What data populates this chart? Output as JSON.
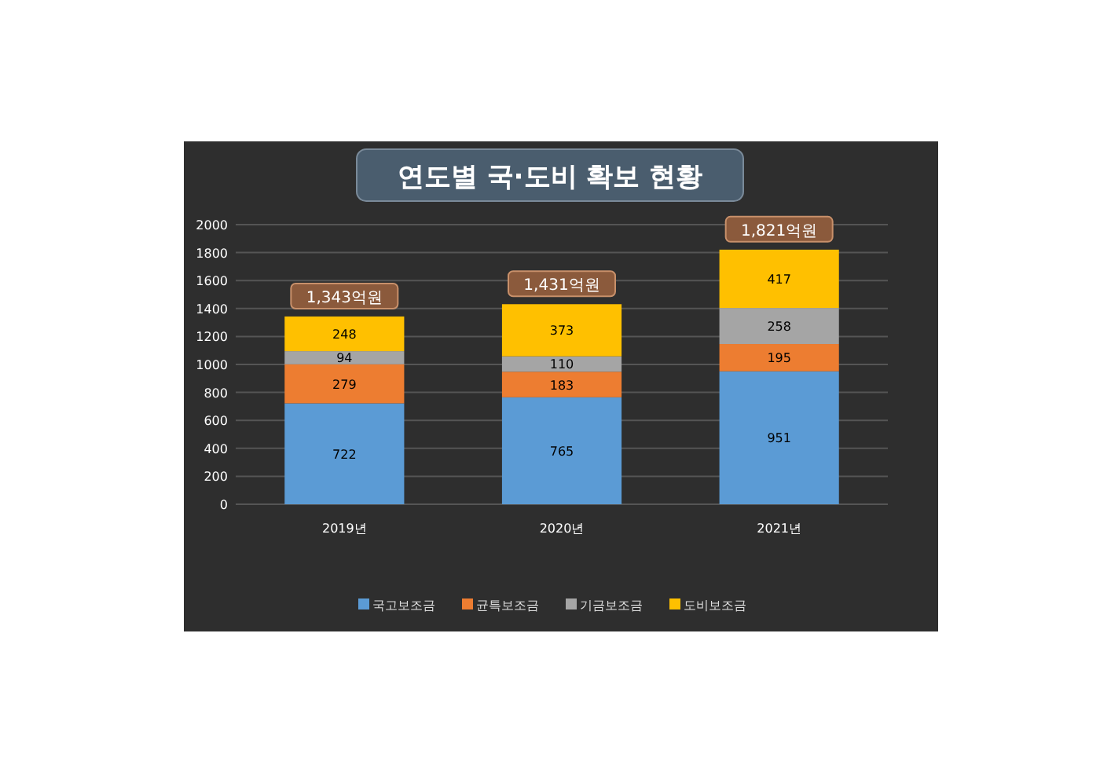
{
  "chart_data": {
    "type": "bar",
    "title": "연도별 국·도비 확보 현황",
    "stacked": true,
    "categories": [
      "2019년",
      "2020년",
      "2021년"
    ],
    "series": [
      {
        "name": "국고보조금",
        "color": "#5b9bd5",
        "values": [
          722,
          765,
          951
        ]
      },
      {
        "name": "균특보조금",
        "color": "#ed7d31",
        "values": [
          279,
          183,
          195
        ]
      },
      {
        "name": "기금보조금",
        "color": "#a5a5a5",
        "values": [
          94,
          110,
          258
        ]
      },
      {
        "name": "도비보조금",
        "color": "#ffc000",
        "values": [
          248,
          373,
          417
        ]
      }
    ],
    "totals": [
      "1,343억원",
      "1,431억원",
      "1,821억원"
    ],
    "data_labels": true,
    "ylim": [
      0,
      2000
    ],
    "yticks": [
      0,
      200,
      400,
      600,
      800,
      1000,
      1200,
      1400,
      1600,
      1800,
      2000
    ],
    "grid": "y",
    "legend": "bottom"
  }
}
